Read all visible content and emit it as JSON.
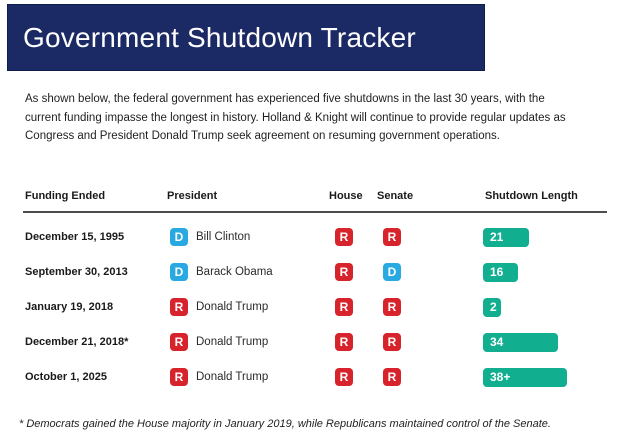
{
  "header": {
    "title": "Government Shutdown Tracker"
  },
  "intro": "As shown below, the federal government has experienced five shutdowns in the last 30 years, with the current funding impasse the longest in history. Holland & Knight will continue to provide regular updates as Congress and President Donald Trump seek agreement on resuming government operations.",
  "table": {
    "columns": [
      "Funding Ended",
      "President",
      "House",
      "Senate",
      "Shutdown Length"
    ],
    "rows": [
      {
        "funding_ended": "December 15, 1995",
        "president_party": "D",
        "president": "Bill Clinton",
        "house": "R",
        "senate": "R",
        "length_label": "21",
        "length_days": 21
      },
      {
        "funding_ended": "September 30, 2013",
        "president_party": "D",
        "president": "Barack Obama",
        "house": "R",
        "senate": "D",
        "length_label": "16",
        "length_days": 16
      },
      {
        "funding_ended": "January 19, 2018",
        "president_party": "R",
        "president": "Donald Trump",
        "house": "R",
        "senate": "R",
        "length_label": "2",
        "length_days": 2
      },
      {
        "funding_ended": "December 21, 2018*",
        "president_party": "R",
        "president": "Donald Trump",
        "house": "R",
        "senate": "R",
        "length_label": "34",
        "length_days": 34
      },
      {
        "funding_ended": "October 1, 2025",
        "president_party": "R",
        "president": "Donald Trump",
        "house": "R",
        "senate": "R",
        "length_label": "38+",
        "length_days": 38
      }
    ]
  },
  "footnote": "* Democrats gained the House majority in January 2019, while Republicans maintained control of the Senate.",
  "colors": {
    "banner": "#1B2A64",
    "democrat": "#29A9E1",
    "republican": "#D7232B",
    "bar": "#12AE90"
  },
  "chart_data": {
    "type": "bar",
    "title": "Shutdown Length",
    "categories": [
      "December 15, 1995",
      "September 30, 2013",
      "January 19, 2018",
      "December 21, 2018*",
      "October 1, 2025"
    ],
    "values": [
      21,
      16,
      2,
      34,
      38
    ],
    "value_labels": [
      "21",
      "16",
      "2",
      "34",
      "38+"
    ],
    "xlabel": "",
    "ylabel": "Shutdown Length (days)"
  }
}
